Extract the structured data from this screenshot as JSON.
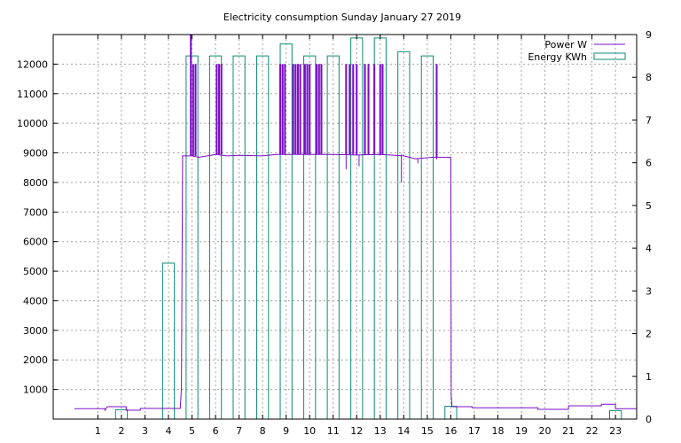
{
  "chart_data": {
    "type": "bar",
    "title": "Electricity consumption Sunday January 27 2019",
    "xlabel": "",
    "ylabel": "",
    "y2label": "",
    "grid": true,
    "legend_position": "top-right",
    "xlim": [
      -0.9,
      23.9
    ],
    "ylim": [
      0,
      13000
    ],
    "y2lim": [
      0,
      9
    ],
    "x_ticks": [
      "1",
      "2",
      "3",
      "4",
      "5",
      "6",
      "7",
      "8",
      "9",
      "10",
      "11",
      "12",
      "13",
      "14",
      "15",
      "16",
      "17",
      "18",
      "19",
      "20",
      "21",
      "22",
      "23"
    ],
    "y_ticks": [
      "1000",
      "2000",
      "3000",
      "4000",
      "5000",
      "6000",
      "7000",
      "8000",
      "9000",
      "10000",
      "11000",
      "12000"
    ],
    "y2_ticks": [
      "0",
      "1",
      "2",
      "3",
      "4",
      "5",
      "6",
      "7",
      "8",
      "9"
    ],
    "colors": {
      "power": "#7b0fc7",
      "energy": "#0f8a73"
    },
    "series": [
      {
        "name": "Power W",
        "axis": "left",
        "style": "line",
        "base_level": [
          [
            0,
            350
          ],
          [
            1.3,
            350
          ],
          [
            1.3,
            300
          ],
          [
            1.4,
            420
          ],
          [
            2.2,
            420
          ],
          [
            2.2,
            300
          ],
          [
            2.8,
            300
          ],
          [
            2.8,
            360
          ],
          [
            4.5,
            360
          ],
          [
            4.55,
            1050
          ],
          [
            4.6,
            8900
          ],
          [
            5.0,
            8900
          ],
          [
            5.3,
            8850
          ],
          [
            6.0,
            8950
          ],
          [
            6.5,
            8900
          ],
          [
            7.0,
            8920
          ],
          [
            8.0,
            8900
          ],
          [
            8.6,
            8950
          ],
          [
            9.0,
            8950
          ],
          [
            10.0,
            8950
          ],
          [
            11.0,
            8950
          ],
          [
            12.0,
            8930
          ],
          [
            13.0,
            8950
          ],
          [
            14.0,
            8900
          ],
          [
            14.5,
            8800
          ],
          [
            15.2,
            8850
          ],
          [
            16.0,
            8850
          ],
          [
            16.02,
            800
          ],
          [
            16.05,
            420
          ],
          [
            16.9,
            420
          ],
          [
            16.9,
            380
          ],
          [
            19.7,
            380
          ],
          [
            19.7,
            330
          ],
          [
            21.0,
            330
          ],
          [
            21.0,
            450
          ],
          [
            22.4,
            450
          ],
          [
            22.4,
            500
          ],
          [
            23.0,
            500
          ],
          [
            23.0,
            350
          ],
          [
            23.9,
            350
          ]
        ],
        "spikes": [
          [
            4.95,
            13000
          ],
          [
            5.05,
            12000
          ],
          [
            5.15,
            12000
          ],
          [
            6.05,
            12000
          ],
          [
            6.15,
            12000
          ],
          [
            6.25,
            12000
          ],
          [
            8.75,
            12000
          ],
          [
            8.85,
            12000
          ],
          [
            8.95,
            12000
          ],
          [
            9.3,
            12000
          ],
          [
            9.4,
            12000
          ],
          [
            9.5,
            12000
          ],
          [
            9.6,
            12000
          ],
          [
            9.8,
            12000
          ],
          [
            9.9,
            12000
          ],
          [
            10.0,
            12000
          ],
          [
            10.3,
            12000
          ],
          [
            10.4,
            12000
          ],
          [
            10.5,
            12000
          ],
          [
            11.55,
            12000
          ],
          [
            11.7,
            12000
          ],
          [
            11.85,
            12000
          ],
          [
            12.0,
            12000
          ],
          [
            12.35,
            12000
          ],
          [
            12.5,
            12000
          ],
          [
            12.75,
            12000
          ],
          [
            13.0,
            12000
          ],
          [
            13.1,
            12000
          ],
          [
            15.4,
            12000
          ]
        ],
        "dips": [
          [
            11.55,
            8450
          ],
          [
            12.1,
            8550
          ],
          [
            13.9,
            8000
          ],
          [
            14.6,
            8650
          ],
          [
            15.4,
            8780
          ]
        ]
      },
      {
        "name": "Energy KWh",
        "axis": "right",
        "style": "boxes",
        "x": [
          2,
          4,
          5,
          6,
          7,
          8,
          9,
          10,
          11,
          12,
          13,
          14,
          15,
          16,
          23
        ],
        "values": [
          0.22,
          3.65,
          8.5,
          8.5,
          8.5,
          8.5,
          8.78,
          8.5,
          8.5,
          8.92,
          8.92,
          8.6,
          8.5,
          0.3,
          0.2
        ]
      }
    ]
  }
}
